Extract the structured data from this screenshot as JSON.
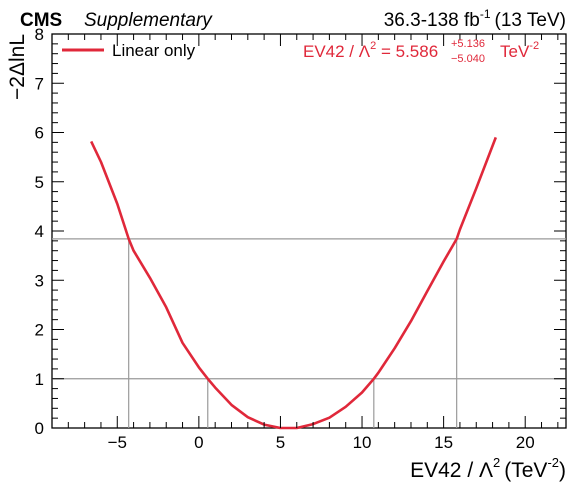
{
  "header": {
    "experiment": "CMS",
    "tag": "Supplementary",
    "lumi_text": "36.3-138 fb",
    "lumi_exp": "-1",
    "energy_text": "(13 TeV)"
  },
  "legend": {
    "entry": "Linear only",
    "color": "#e0283a"
  },
  "result": {
    "param": "EV42 / Λ",
    "param_sup": "2",
    "eq": " = 5.586",
    "up": "+5.136",
    "down": "−5.040",
    "unit": "TeV",
    "unit_exp": "-2",
    "color": "#e0283a"
  },
  "axes": {
    "xlabel_main": "EV42 / Λ",
    "xlabel_sup": "2",
    "xlabel_unit": "(TeV",
    "xlabel_unit_exp": "-2",
    "xlabel_close": ")",
    "ylabel": "−2ΔlnL"
  },
  "chart_data": {
    "type": "line",
    "xlim": [
      -9,
      22.5
    ],
    "ylim": [
      0,
      8
    ],
    "xticks": [
      -5,
      0,
      5,
      10,
      15,
      20
    ],
    "xtick_labels": [
      "−5",
      "0",
      "5",
      "10",
      "15",
      "20"
    ],
    "yticks": [
      0,
      1,
      2,
      3,
      4,
      5,
      6,
      7,
      8
    ],
    "ytick_labels": [
      "0",
      "1",
      "2",
      "3",
      "4",
      "5",
      "6",
      "7",
      "8"
    ],
    "best_fit": 5.586,
    "err_up": 5.136,
    "err_down": 5.04,
    "thresholds": [
      1,
      3.84
    ],
    "crossings_1sigma": [
      0.546,
      10.722
    ],
    "crossings_95": [
      -4.3,
      15.8
    ],
    "series": [
      {
        "name": "Linear only",
        "color": "#e0283a",
        "x": [
          -6.6,
          -6.0,
          -5.0,
          -4.3,
          -4.0,
          -3.0,
          -2.0,
          -1.0,
          0.0,
          0.546,
          1.0,
          2.0,
          3.0,
          4.0,
          5.0,
          5.586,
          6.0,
          7.0,
          8.0,
          9.0,
          10.0,
          10.722,
          11.0,
          12.0,
          13.0,
          14.0,
          15.0,
          15.8,
          16.0,
          17.0,
          18.2
        ],
        "y": [
          5.82,
          5.4,
          4.55,
          3.84,
          3.6,
          3.05,
          2.45,
          1.73,
          1.23,
          1.0,
          0.82,
          0.47,
          0.22,
          0.07,
          0.0,
          0.0,
          0.0,
          0.08,
          0.21,
          0.43,
          0.72,
          1.0,
          1.12,
          1.62,
          2.17,
          2.78,
          3.38,
          3.84,
          4.03,
          4.87,
          5.9
        ]
      }
    ]
  }
}
